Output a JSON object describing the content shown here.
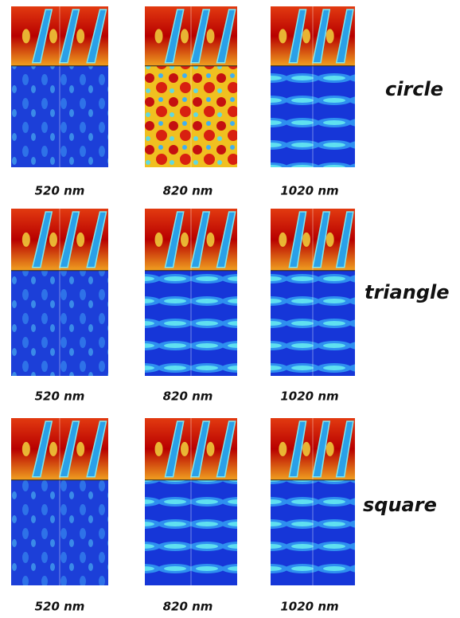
{
  "rows": [
    {
      "label": "circle",
      "panels": [
        {
          "wavelength": "520 nm"
        },
        {
          "wavelength": "820 nm"
        },
        {
          "wavelength": "1020 nm"
        }
      ]
    },
    {
      "label": "triangle",
      "panels": [
        {
          "wavelength": "520 nm"
        },
        {
          "wavelength": "820 nm"
        },
        {
          "wavelength": "1020 nm"
        }
      ]
    },
    {
      "label": "square",
      "panels": [
        {
          "wavelength": "520 nm"
        },
        {
          "wavelength": "820 nm"
        },
        {
          "wavelength": "1020 nm"
        }
      ]
    }
  ]
}
